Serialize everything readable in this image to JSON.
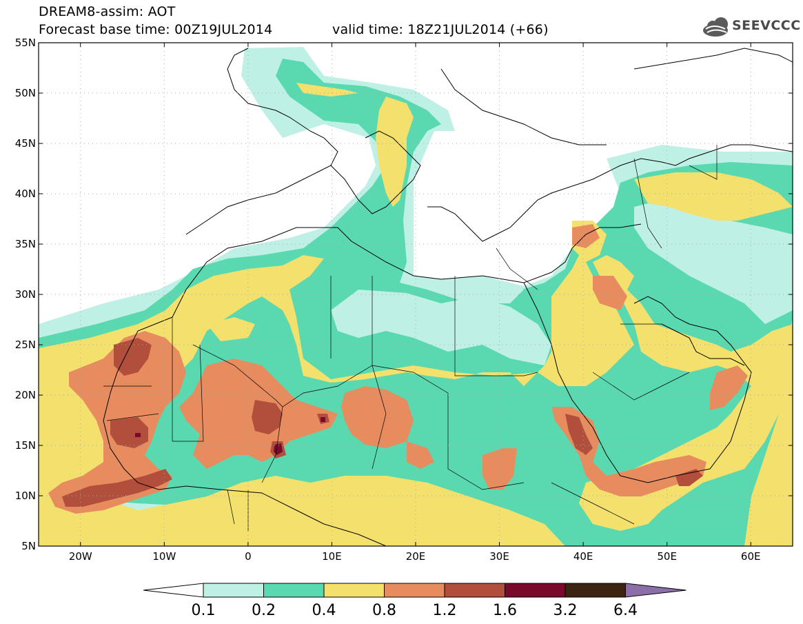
{
  "header": {
    "line1": "DREAM8-assim: AOT",
    "line2": "Forecast base time: 00Z19JUL2014",
    "line3": "valid time: 18Z21JUL2014 (+66)",
    "logo_text": "SEEVCCC"
  },
  "map": {
    "lon_range": [
      -25,
      65
    ],
    "lat_range": [
      5,
      55
    ],
    "lon_ticks": [
      "20W",
      "10W",
      "0",
      "10E",
      "20E",
      "30E",
      "40E",
      "50E",
      "60E"
    ],
    "lat_ticks": [
      "55N",
      "50N",
      "45N",
      "40N",
      "35N",
      "30N",
      "25N",
      "20N",
      "15N",
      "10N",
      "5N"
    ]
  },
  "colorbar": {
    "levels": [
      "0.1",
      "0.2",
      "0.4",
      "0.8",
      "1.2",
      "1.6",
      "3.2",
      "6.4"
    ],
    "colors": [
      "#ffffff",
      "#bff0e6",
      "#5ad9b0",
      "#f4e06c",
      "#e68c5e",
      "#b24e3c",
      "#7a0a2c",
      "#3c2410",
      "#8c6fa8"
    ]
  },
  "field_colors": {
    "c1": "#bff0e6",
    "c2": "#5ad9b0",
    "c3": "#f4e06c",
    "c4": "#e68c5e",
    "c5": "#b24e3c",
    "c6": "#7a0a2c"
  }
}
